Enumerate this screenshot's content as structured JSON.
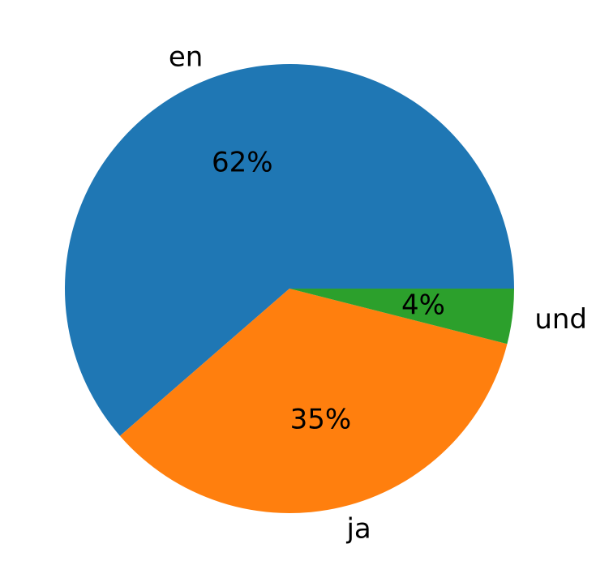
{
  "chart_data": {
    "type": "pie",
    "labels": [
      "en",
      "ja",
      "und"
    ],
    "values": [
      62,
      35,
      4
    ],
    "pct_labels": [
      "62%",
      "35%",
      "4%"
    ],
    "colors": [
      "#1f77b4",
      "#ff7f0e",
      "#2ca02c"
    ],
    "start_angle_deg": 0,
    "direction": "counterclockwise",
    "legend": "none"
  }
}
